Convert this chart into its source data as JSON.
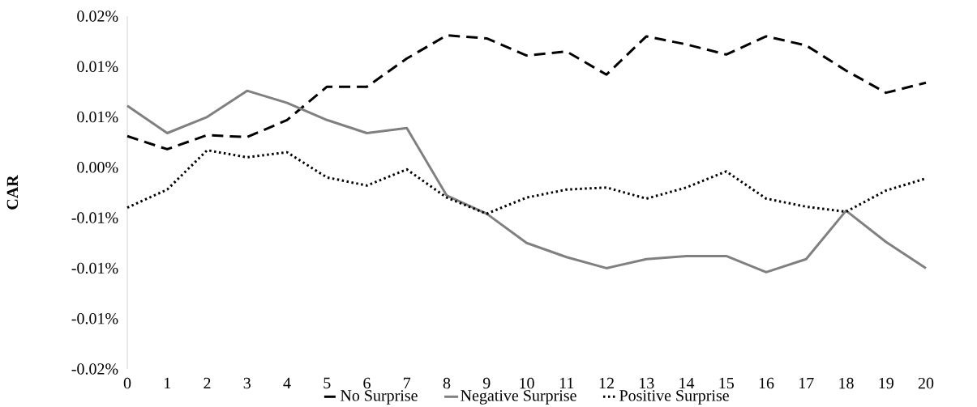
{
  "chart_data": {
    "type": "line",
    "ylabel": "CAR",
    "categories": [
      "0",
      "1",
      "2",
      "3",
      "4",
      "5",
      "6",
      "7",
      "8",
      "9",
      "10",
      "11",
      "12",
      "13",
      "14",
      "15",
      "16",
      "17",
      "18",
      "19",
      "20"
    ],
    "series": [
      {
        "name": "No Surprise",
        "color": "#000000",
        "line_style": "dashed",
        "values": [
          0.0031,
          0.0018,
          0.0032,
          0.003,
          0.0047,
          0.008,
          0.008,
          0.0108,
          0.0131,
          0.0128,
          0.0111,
          0.0115,
          0.0092,
          0.013,
          0.0122,
          0.0112,
          0.013,
          0.0121,
          0.0096,
          0.0074,
          0.0084
        ]
      },
      {
        "name": "Negative Surprise",
        "color": "#808080",
        "line_style": "solid",
        "values": [
          0.0061,
          0.0034,
          0.005,
          0.0076,
          0.0064,
          0.0047,
          0.0034,
          0.0039,
          -0.0028,
          -0.0046,
          -0.0075,
          -0.0089,
          -0.01,
          -0.0091,
          -0.0088,
          -0.0088,
          -0.0104,
          -0.0091,
          -0.0043,
          -0.0074,
          -0.01
        ]
      },
      {
        "name": "Positive Surprise",
        "color": "#000000",
        "line_style": "dotted",
        "values": [
          -0.004,
          -0.0022,
          0.0017,
          0.001,
          0.0015,
          -0.001,
          -0.0018,
          -0.0002,
          -0.003,
          -0.0046,
          -0.003,
          -0.0022,
          -0.002,
          -0.0031,
          -0.002,
          -0.0004,
          -0.0031,
          -0.0039,
          -0.0044,
          -0.0023,
          -0.0011
        ]
      }
    ],
    "ylim": [
      -0.02,
      0.015
    ],
    "yticks": [
      {
        "value": -0.02,
        "label": "-0.02%"
      },
      {
        "value": -0.015,
        "label": "-0.01%"
      },
      {
        "value": -0.01,
        "label": "-0.01%"
      },
      {
        "value": -0.005,
        "label": "-0.01%"
      },
      {
        "value": 0,
        "label": "0.00%"
      },
      {
        "value": 0.005,
        "label": "0.01%"
      },
      {
        "value": 0.01,
        "label": "0.01%"
      },
      {
        "value": 0.015,
        "label": "0.02%"
      }
    ],
    "grid": false,
    "legend": "bottom",
    "marker": "none"
  }
}
